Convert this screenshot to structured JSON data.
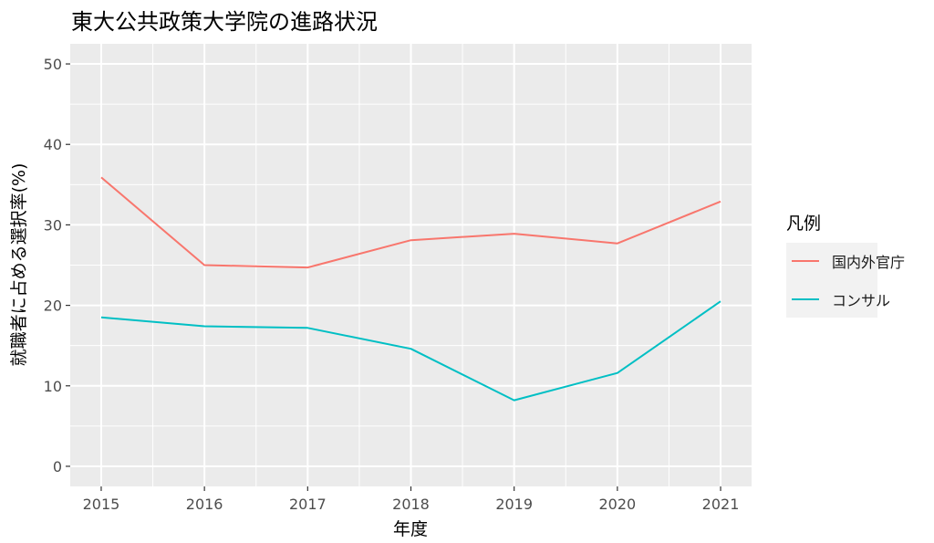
{
  "chart_data": {
    "type": "line",
    "title": "東大公共政策大学院の進路状況",
    "xlabel": "年度",
    "ylabel": "就職者に占める選択率(%)",
    "x": [
      2015,
      2016,
      2017,
      2018,
      2019,
      2020,
      2021
    ],
    "xlim": [
      2014.7,
      2021.3
    ],
    "ylim": [
      -2.5,
      52.5
    ],
    "yticks": [
      0,
      10,
      20,
      30,
      40,
      50
    ],
    "grid": true,
    "legend_title": "凡例",
    "legend_position": "right",
    "series": [
      {
        "name": "国内外官庁",
        "color": "#F8766D",
        "values": [
          35.9,
          25.0,
          24.7,
          28.1,
          28.9,
          27.7,
          32.9
        ]
      },
      {
        "name": "コンサル",
        "color": "#00BFC4",
        "values": [
          18.5,
          17.4,
          17.2,
          14.6,
          8.2,
          11.6,
          20.5
        ]
      }
    ]
  }
}
